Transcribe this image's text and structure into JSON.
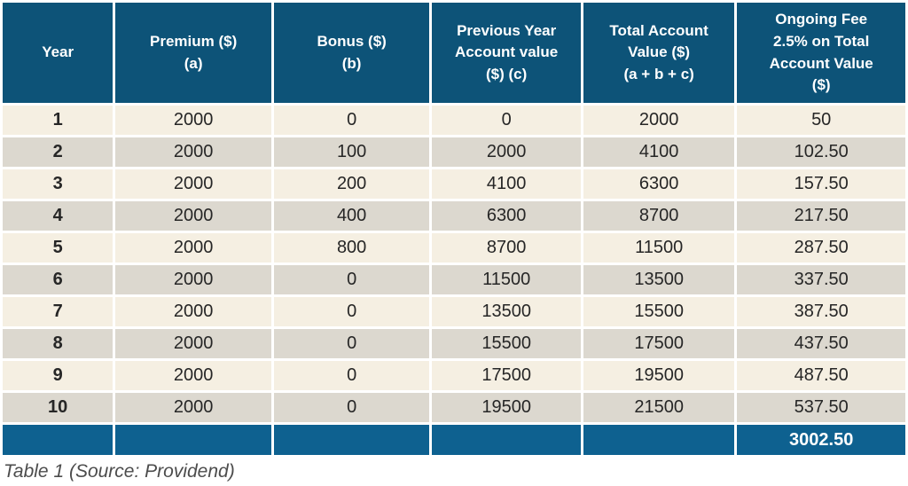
{
  "colors": {
    "header_bg": "#0d5378",
    "footer_bg": "#0e6190",
    "row_cream": "#f5efe2",
    "row_gray": "#dcd8cf",
    "text_dark": "#262626",
    "header_text": "#ffffff",
    "caption_text": "#4c4c4c"
  },
  "table": {
    "header_lines": [
      "Year",
      "Premium ($)\n(a)",
      "Bonus ($)\n(b)",
      "Previous Year\nAccount value\n($) (c)",
      "Total Account\nValue ($)\n(a + b + c)",
      "Ongoing Fee\n2.5% on Total\nAccount Value\n($)"
    ],
    "caption": "Table 1 (Source: Providend)"
  },
  "chart_data": {
    "type": "table",
    "title": "Table 1 (Source: Providend)",
    "columns": [
      "Year",
      "Premium ($) (a)",
      "Bonus ($) (b)",
      "Previous Year Account value ($) (c)",
      "Total Account Value ($) (a + b + c)",
      "Ongoing Fee 2.5% on Total Account Value ($)"
    ],
    "rows": [
      [
        "1",
        "2000",
        "0",
        "0",
        "2000",
        "50"
      ],
      [
        "2",
        "2000",
        "100",
        "2000",
        "4100",
        "102.50"
      ],
      [
        "3",
        "2000",
        "200",
        "4100",
        "6300",
        "157.50"
      ],
      [
        "4",
        "2000",
        "400",
        "6300",
        "8700",
        "217.50"
      ],
      [
        "5",
        "2000",
        "800",
        "8700",
        "11500",
        "287.50"
      ],
      [
        "6",
        "2000",
        "0",
        "11500",
        "13500",
        "337.50"
      ],
      [
        "7",
        "2000",
        "0",
        "13500",
        "15500",
        "387.50"
      ],
      [
        "8",
        "2000",
        "0",
        "15500",
        "17500",
        "437.50"
      ],
      [
        "9",
        "2000",
        "0",
        "17500",
        "19500",
        "487.50"
      ],
      [
        "10",
        "2000",
        "0",
        "19500",
        "21500",
        "537.50"
      ]
    ],
    "footer": [
      "",
      "",
      "",
      "",
      "",
      "3002.50"
    ]
  }
}
